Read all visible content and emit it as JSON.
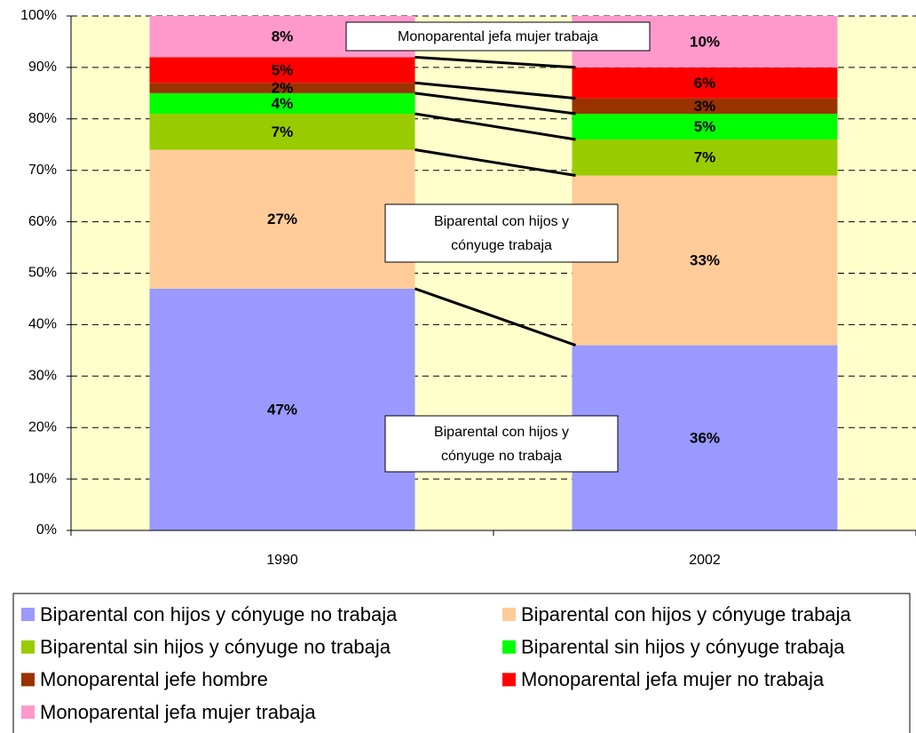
{
  "chart_data": {
    "type": "stacked_bar",
    "categories": [
      "1990",
      "2002"
    ],
    "series": [
      {
        "name": "Biparental con hijos y cónyuge no trabaja",
        "color": "#9999FF",
        "values": [
          47,
          36
        ],
        "value_labels": [
          "47%",
          "36%"
        ]
      },
      {
        "name": "Biparental con hijos y cónyuge trabaja",
        "color": "#FFCC99",
        "values": [
          27,
          33
        ],
        "value_labels": [
          "27%",
          "33%"
        ]
      },
      {
        "name": "Biparental sin hijos y cónyuge no trabaja",
        "color": "#99CC00",
        "values": [
          7,
          7
        ],
        "value_labels": [
          "7%",
          "7%"
        ]
      },
      {
        "name": "Biparental sin hijos y cónyuge trabaja",
        "color": "#00FF00",
        "values": [
          4,
          5
        ],
        "value_labels": [
          "4%",
          "5%"
        ]
      },
      {
        "name": "Monoparental jefe hombre",
        "color": "#993300",
        "values": [
          2,
          3
        ],
        "value_labels": [
          "2%",
          "3%"
        ]
      },
      {
        "name": "Monoparental jefa mujer no trabaja",
        "color": "#FF0000",
        "values": [
          5,
          6
        ],
        "value_labels": [
          "5%",
          "6%"
        ]
      },
      {
        "name": "Monoparental jefa mujer trabaja",
        "color": "#FF99CC",
        "values": [
          8,
          10
        ],
        "value_labels": [
          "8%",
          "10%"
        ]
      }
    ],
    "ylim": [
      0,
      100
    ],
    "yticks": [
      {
        "value": 0,
        "label": "0%"
      },
      {
        "value": 10,
        "label": "10%"
      },
      {
        "value": 20,
        "label": "20%"
      },
      {
        "value": 30,
        "label": "30%"
      },
      {
        "value": 40,
        "label": "40%"
      },
      {
        "value": 50,
        "label": "50%"
      },
      {
        "value": 60,
        "label": "60%"
      },
      {
        "value": 70,
        "label": "70%"
      },
      {
        "value": 80,
        "label": "80%"
      },
      {
        "value": 90,
        "label": "90%"
      },
      {
        "value": 100,
        "label": "100%"
      }
    ],
    "grid": true,
    "background": "#FFFFCC",
    "legend": "bottom",
    "annotations": [
      {
        "lines": [
          "Monoparental jefa mujer trabaja"
        ]
      },
      {
        "lines": [
          "Biparental con hijos y",
          "cónyuge trabaja"
        ]
      },
      {
        "lines": [
          "Biparental con hijos y",
          "cónyuge no trabaja"
        ]
      }
    ]
  }
}
